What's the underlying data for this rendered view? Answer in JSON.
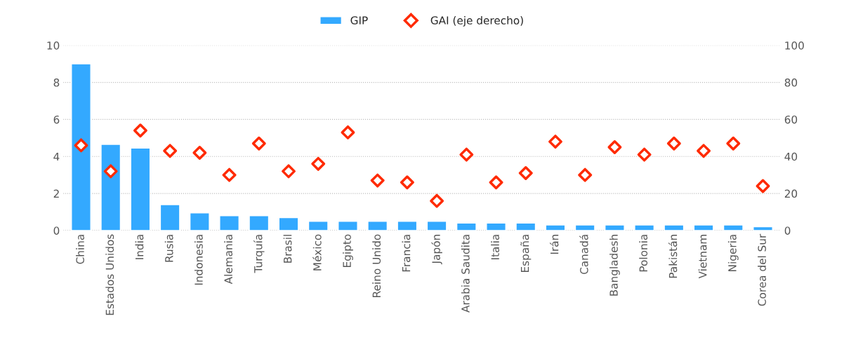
{
  "chart_data": {
    "type": "bar",
    "categories": [
      "China",
      "Estados Unidos",
      "India",
      "Rusia",
      "Indonesia",
      "Alemania",
      "Turquía",
      "Brasil",
      "México",
      "Egipto",
      "Reino Unido",
      "Francia",
      "Japón",
      "Arabia Saudita",
      "Italia",
      "España",
      "Irán",
      "Canadá",
      "Bangladesh",
      "Polonia",
      "Pakistán",
      "Vietnam",
      "Nigeria",
      "Corea del Sur"
    ],
    "series": [
      {
        "name": "GIP",
        "color": "#33a9ff",
        "values": [
          9.0,
          4.65,
          4.45,
          1.4,
          0.95,
          0.8,
          0.8,
          0.7,
          0.5,
          0.5,
          0.5,
          0.5,
          0.5,
          0.4,
          0.4,
          0.4,
          0.3,
          0.3,
          0.3,
          0.3,
          0.3,
          0.3,
          0.3,
          0.2
        ]
      },
      {
        "name": "GAI (eje derecho)",
        "type": "scatter",
        "axis": "y2",
        "marker": "diamond",
        "color": "#ff2a00",
        "values": [
          46,
          32,
          54,
          43,
          42,
          30,
          47,
          32,
          36,
          53,
          27,
          26,
          16,
          41,
          26,
          31,
          48,
          30,
          45,
          41,
          47,
          43,
          47,
          24
        ]
      }
    ],
    "ylim": [
      0,
      10
    ],
    "yticks": [
      0,
      2,
      4,
      6,
      8,
      10
    ],
    "y2lim": [
      0,
      100
    ],
    "y2ticks": [
      0,
      20,
      40,
      60,
      80,
      100
    ],
    "grid": "y",
    "legend": "top"
  }
}
